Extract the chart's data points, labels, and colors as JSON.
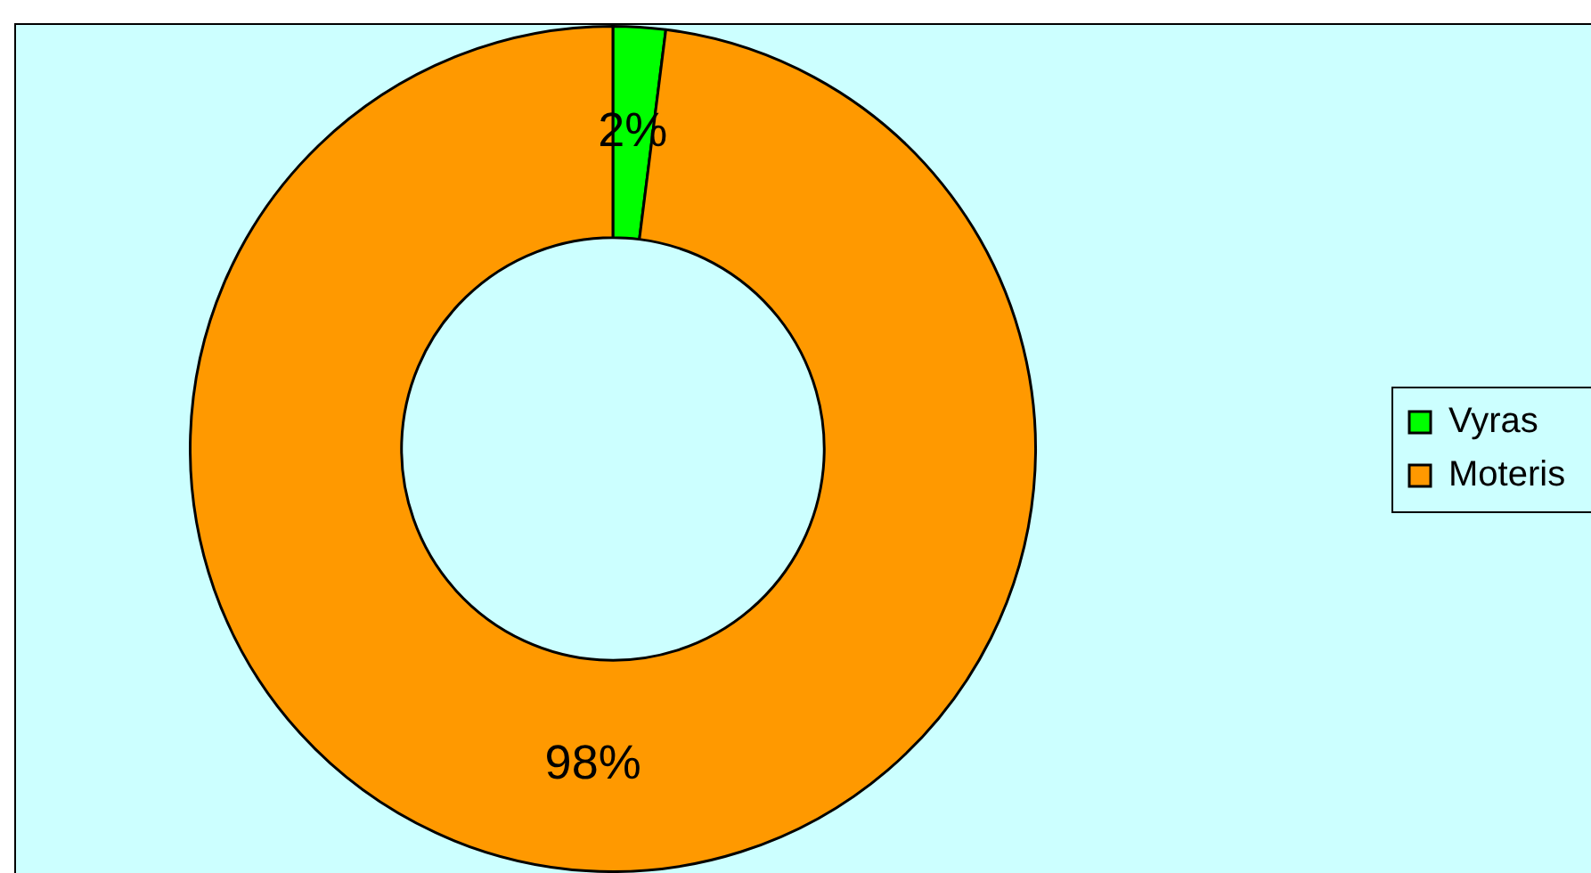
{
  "chart_data": {
    "type": "donut",
    "categories": [
      "Vyras",
      "Moteris"
    ],
    "values": [
      2,
      98
    ],
    "colors": [
      "#00ff00",
      "#ff9900"
    ],
    "value_labels": [
      "2%",
      "98%"
    ],
    "legend": "right"
  }
}
